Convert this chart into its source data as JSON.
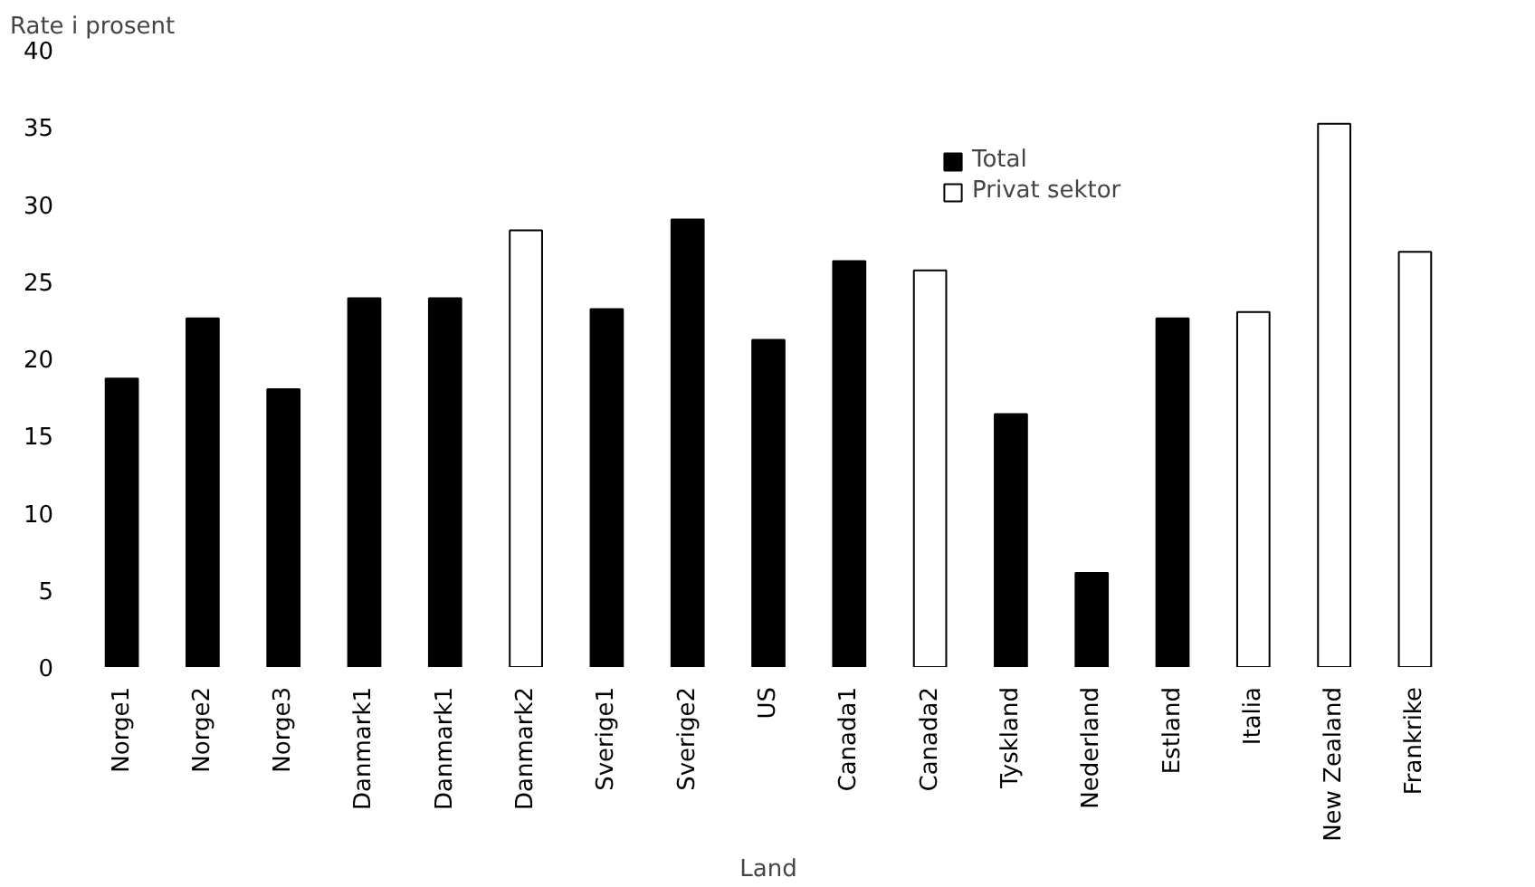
{
  "chart_data": {
    "type": "bar",
    "ylabel": "Rate i prosent",
    "xlabel": "Land",
    "categories": [
      "Norge1",
      "Norge2",
      "Norge3",
      "Danmark1",
      "Danmark1",
      "Danmark2",
      "Sverige1",
      "Sverige2",
      "US",
      "Canada1",
      "Canada2",
      "Tyskland",
      "Nederland",
      "Estland",
      "Italia",
      "New Zealand",
      "Frankrike"
    ],
    "series": [
      {
        "name": "Total",
        "color": "#000000",
        "values": [
          18.7,
          22.6,
          18.0,
          23.9,
          23.9,
          null,
          23.2,
          29.0,
          21.2,
          26.3,
          null,
          16.4,
          6.1,
          22.6,
          null,
          null,
          null
        ]
      },
      {
        "name": "Privat sektor",
        "color": "#ffffff",
        "values": [
          null,
          null,
          null,
          null,
          null,
          28.3,
          null,
          null,
          null,
          null,
          25.7,
          null,
          null,
          null,
          23.0,
          35.2,
          26.9
        ]
      }
    ],
    "ylim": [
      0,
      40
    ],
    "yticks": [
      0,
      5,
      10,
      15,
      20,
      25,
      30,
      35,
      40
    ],
    "grid": false,
    "legend": "top right"
  }
}
